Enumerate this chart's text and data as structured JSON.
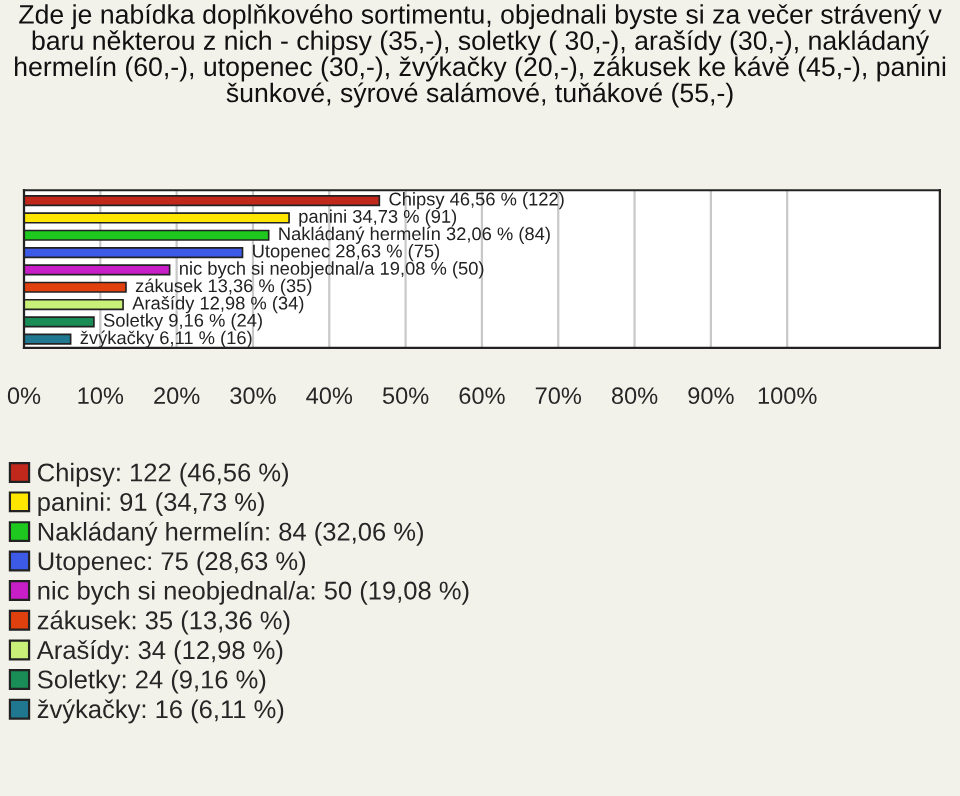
{
  "chart_data": {
    "type": "bar",
    "orientation": "horizontal",
    "title": "Zde je nabídka doplňkového sortimentu, objednali byste si za večer strávený v baru některou z nich - chipsy (35,-), soletky ( 30,-), arašídy (30,-), nakládaný hermelín (60,-), utopenec (30,-), žvýkačky (20,-), zákusek ke kávě (45,-), panini šunkové, sýrové salámové, tuňákové (55,-)",
    "categories": [
      null,
      null,
      null,
      null,
      null,
      null,
      null,
      null,
      null
    ],
    "series": [
      {
        "name": "Chipsy: 122 (46,56 %)",
        "color": "#c0281c",
        "values": [
          46.56,
          null,
          null,
          null,
          null,
          null,
          null,
          null,
          null
        ],
        "value_labels": [
          "Chipsy 46,56 % (122)",
          null,
          null,
          null,
          null,
          null,
          null,
          null,
          null
        ]
      },
      {
        "name": "panini: 91 (34,73 %)",
        "color": "#ffe600",
        "values": [
          null,
          34.73,
          null,
          null,
          null,
          null,
          null,
          null,
          null
        ],
        "value_labels": [
          null,
          "panini 34,73 % (91)",
          null,
          null,
          null,
          null,
          null,
          null,
          null
        ]
      },
      {
        "name": "Nakládaný hermelín: 84 (32,06 %)",
        "color": "#1ec81e",
        "values": [
          null,
          null,
          32.06,
          null,
          null,
          null,
          null,
          null,
          null
        ],
        "value_labels": [
          null,
          null,
          "Nakládaný hermelín 32,06 % (84)",
          null,
          null,
          null,
          null,
          null,
          null
        ]
      },
      {
        "name": "Utopenec: 75 (28,63 %)",
        "color": "#3c5ae6",
        "values": [
          null,
          null,
          null,
          28.63,
          null,
          null,
          null,
          null,
          null
        ],
        "value_labels": [
          null,
          null,
          null,
          "Utopenec 28,63 % (75)",
          null,
          null,
          null,
          null,
          null
        ]
      },
      {
        "name": "nic bych si neobjednal/a: 50 (19,08 %)",
        "color": "#c81ec8",
        "values": [
          null,
          null,
          null,
          null,
          19.08,
          null,
          null,
          null,
          null
        ],
        "value_labels": [
          null,
          null,
          null,
          null,
          "nic bych si neobjednal/a 19,08 % (50)",
          null,
          null,
          null,
          null
        ]
      },
      {
        "name": "zákusek: 35 (13,36 %)",
        "color": "#e0400e",
        "values": [
          null,
          null,
          null,
          null,
          null,
          13.36,
          null,
          null,
          null
        ],
        "value_labels": [
          null,
          null,
          null,
          null,
          null,
          "zákusek 13,36 % (35)",
          null,
          null,
          null
        ]
      },
      {
        "name": "Arašídy: 34 (12,98 %)",
        "color": "#c8f078",
        "values": [
          null,
          null,
          null,
          null,
          null,
          null,
          12.98,
          null,
          null
        ],
        "value_labels": [
          null,
          null,
          null,
          null,
          null,
          null,
          "Arašídy 12,98 % (34)",
          null,
          null
        ]
      },
      {
        "name": "Soletky: 24 (9,16 %)",
        "color": "#1a8c55",
        "values": [
          null,
          null,
          null,
          null,
          null,
          null,
          null,
          9.16,
          null
        ],
        "value_labels": [
          null,
          null,
          null,
          null,
          null,
          null,
          null,
          "Soletky 9,16 % (24)",
          null
        ]
      },
      {
        "name": "žvýkačky: 16 (6,11 %)",
        "color": "#1f7890",
        "values": [
          null,
          null,
          null,
          null,
          null,
          null,
          null,
          null,
          6.11
        ],
        "value_labels": [
          null,
          null,
          null,
          null,
          null,
          null,
          null,
          null,
          "žvýkačky 6,11 % (16)"
        ]
      }
    ],
    "xlim": [
      0,
      120
    ],
    "xticks": [
      {
        "value": 0,
        "label": "0%"
      },
      {
        "value": 10,
        "label": "10%"
      },
      {
        "value": 20,
        "label": "20%"
      },
      {
        "value": 30,
        "label": "30%"
      },
      {
        "value": 40,
        "label": "40%"
      },
      {
        "value": 50,
        "label": "50%"
      },
      {
        "value": 60,
        "label": "60%"
      },
      {
        "value": 70,
        "label": "70%"
      },
      {
        "value": 80,
        "label": "80%"
      },
      {
        "value": 90,
        "label": "90%"
      },
      {
        "value": 100,
        "label": "100%"
      }
    ],
    "grid": "x",
    "legend": "bottom"
  }
}
